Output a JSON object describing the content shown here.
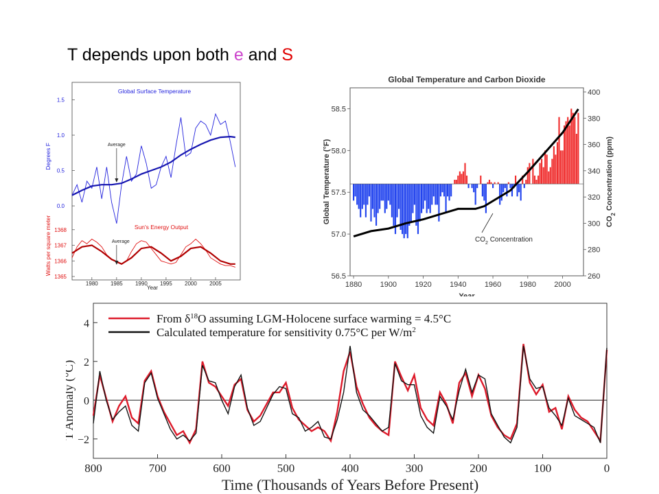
{
  "slide": {
    "title_parts": [
      {
        "text": "T depends upon both ",
        "color": "#000000"
      },
      {
        "text": "e",
        "color": "#cc44cc"
      },
      {
        "text": " and ",
        "color": "#000000"
      },
      {
        "text": "S",
        "color": "#e00000"
      }
    ]
  },
  "chart_data": [
    {
      "type": "line",
      "panel": "top-left-temperature",
      "title": "Global Surface Temperature",
      "ylabel": "Degrees F",
      "ylim": [
        -0.3,
        1.65
      ],
      "yticks": [
        0.0,
        0.5,
        1.0,
        1.5
      ],
      "ytick_labels": [
        "0.0",
        "0.5",
        "1.0",
        "1.5"
      ],
      "xlim": [
        1976,
        2010
      ],
      "annotation": "Average",
      "annotation_x": 1985,
      "color": "#2222dd",
      "series": [
        {
          "x": [
            1976,
            1977,
            1978,
            1979,
            1980,
            1981,
            1982,
            1983,
            1984,
            1985,
            1986,
            1987,
            1988,
            1989,
            1990,
            1991,
            1992,
            1993,
            1994,
            1995,
            1996,
            1997,
            1998,
            1999,
            2000,
            2001,
            2002,
            2003,
            2004,
            2005,
            2006,
            2007,
            2008,
            2009
          ],
          "values": [
            0.15,
            0.3,
            0.05,
            0.35,
            0.25,
            0.55,
            0.1,
            0.55,
            0.05,
            -0.25,
            0.3,
            0.7,
            0.35,
            0.45,
            0.85,
            0.6,
            0.25,
            0.3,
            0.55,
            0.7,
            0.4,
            0.85,
            1.25,
            0.7,
            0.75,
            1.1,
            1.2,
            1.15,
            1.0,
            1.3,
            1.15,
            1.2,
            0.9,
            0.55
          ]
        },
        {
          "x": [
            1976,
            1978,
            1980,
            1982,
            1984,
            1986,
            1988,
            1990,
            1992,
            1994,
            1996,
            1998,
            2000,
            2002,
            2004,
            2006,
            2008,
            2009
          ],
          "values": [
            0.15,
            0.22,
            0.28,
            0.3,
            0.3,
            0.32,
            0.38,
            0.45,
            0.5,
            0.55,
            0.62,
            0.72,
            0.8,
            0.87,
            0.93,
            0.97,
            0.98,
            0.97
          ]
        }
      ]
    },
    {
      "type": "line",
      "panel": "top-left-solar",
      "title": "Sun's Energy Output",
      "ylabel": "Watts per square meter",
      "ylim": [
        1365,
        1368.3
      ],
      "yticks": [
        1365,
        1366,
        1367,
        1368
      ],
      "ytick_labels": [
        "1365",
        "1366",
        "1367",
        "1368"
      ],
      "xlabel": "Year",
      "xlim": [
        1976,
        2010
      ],
      "xticks": [
        1980,
        1985,
        1990,
        1995,
        2000,
        2005
      ],
      "xtick_labels": [
        "1980",
        "1985",
        "1990",
        "1995",
        "2000",
        "2005"
      ],
      "annotation": "Average",
      "annotation_x": 1985,
      "color": "#e01010",
      "series": [
        {
          "x": [
            1976,
            1977,
            1978,
            1979,
            1980,
            1981,
            1982,
            1983,
            1984,
            1985,
            1986,
            1987,
            1988,
            1989,
            1990,
            1991,
            1992,
            1993,
            1994,
            1995,
            1996,
            1997,
            1998,
            1999,
            2000,
            2001,
            2002,
            2003,
            2004,
            2005,
            2006,
            2007,
            2008,
            2009
          ],
          "values": [
            1366.2,
            1366.9,
            1367.3,
            1367.1,
            1367.4,
            1367.2,
            1366.9,
            1366.4,
            1366.1,
            1365.9,
            1365.8,
            1366.0,
            1366.6,
            1367.1,
            1367.3,
            1367.2,
            1366.8,
            1366.4,
            1366.0,
            1365.9,
            1365.8,
            1365.9,
            1366.4,
            1366.9,
            1367.1,
            1367.4,
            1367.1,
            1366.7,
            1366.2,
            1366.0,
            1365.8,
            1365.7,
            1365.7,
            1365.6
          ]
        },
        {
          "x": [
            1976,
            1978,
            1980,
            1982,
            1984,
            1986,
            1988,
            1990,
            1992,
            1994,
            1996,
            1998,
            2000,
            2002,
            2004,
            2006,
            2008,
            2009
          ],
          "values": [
            1366.5,
            1366.9,
            1367.0,
            1366.6,
            1366.1,
            1365.8,
            1366.2,
            1366.8,
            1366.9,
            1366.5,
            1366.0,
            1366.3,
            1366.8,
            1366.9,
            1366.5,
            1366.0,
            1365.8,
            1365.8
          ]
        }
      ]
    },
    {
      "type": "bar",
      "panel": "top-right",
      "title": "Global Temperature and Carbon Dioxide",
      "ylabel": "Global Temperature (°F)",
      "y2label_parts": [
        "CO",
        "2",
        " Concentration (ppm)"
      ],
      "xlabel": "Year",
      "xlim": [
        1878,
        2012
      ],
      "xticks": [
        1880,
        1900,
        1920,
        1940,
        1960,
        1980,
        2000
      ],
      "xtick_labels": [
        "1880",
        "1900",
        "1920",
        "1940",
        "1960",
        "1980",
        "2000"
      ],
      "ylim": [
        56.5,
        58.75
      ],
      "yticks": [
        56.5,
        57.0,
        57.5,
        58.0,
        58.5
      ],
      "ytick_labels": [
        "56.5",
        "57.0",
        "57.5",
        "58.0",
        "58.5"
      ],
      "baseline": 57.6,
      "y2lim": [
        260,
        400
      ],
      "y2ticks": [
        260,
        280,
        300,
        320,
        340,
        360,
        380,
        400
      ],
      "y2tick_labels": [
        "260",
        "280",
        "300",
        "320",
        "340",
        "360",
        "380",
        "400"
      ],
      "positive_color": "#f03030",
      "negative_color": "#2244ee",
      "co2_label_parts": [
        "CO",
        "2",
        " Concentration"
      ],
      "temperature": {
        "x": [
          1880,
          1881,
          1882,
          1883,
          1884,
          1885,
          1886,
          1887,
          1888,
          1889,
          1890,
          1891,
          1892,
          1893,
          1894,
          1895,
          1896,
          1897,
          1898,
          1899,
          1900,
          1901,
          1902,
          1903,
          1904,
          1905,
          1906,
          1907,
          1908,
          1909,
          1910,
          1911,
          1912,
          1913,
          1914,
          1915,
          1916,
          1917,
          1918,
          1919,
          1920,
          1921,
          1922,
          1923,
          1924,
          1925,
          1926,
          1927,
          1928,
          1929,
          1930,
          1931,
          1932,
          1933,
          1934,
          1935,
          1936,
          1937,
          1938,
          1939,
          1940,
          1941,
          1942,
          1943,
          1944,
          1945,
          1946,
          1947,
          1948,
          1949,
          1950,
          1951,
          1952,
          1953,
          1954,
          1955,
          1956,
          1957,
          1958,
          1959,
          1960,
          1961,
          1962,
          1963,
          1964,
          1965,
          1966,
          1967,
          1968,
          1969,
          1970,
          1971,
          1972,
          1973,
          1974,
          1975,
          1976,
          1977,
          1978,
          1979,
          1980,
          1981,
          1982,
          1983,
          1984,
          1985,
          1986,
          1987,
          1988,
          1989,
          1990,
          1991,
          1992,
          1993,
          1994,
          1995,
          1996,
          1997,
          1998,
          1999,
          2000,
          2001,
          2002,
          2003,
          2004,
          2005,
          2006,
          2007,
          2008,
          2009
        ],
        "values": [
          57.4,
          57.45,
          57.35,
          57.3,
          57.2,
          57.3,
          57.35,
          57.2,
          57.35,
          57.45,
          57.15,
          57.3,
          57.2,
          57.1,
          57.25,
          57.3,
          57.4,
          57.4,
          57.25,
          57.3,
          57.4,
          57.35,
          57.2,
          57.1,
          57.0,
          57.2,
          57.3,
          57.05,
          57.0,
          56.95,
          57.0,
          56.95,
          57.1,
          57.15,
          57.25,
          57.35,
          57.1,
          57.0,
          57.15,
          57.25,
          57.3,
          57.4,
          57.25,
          57.3,
          57.25,
          57.35,
          57.45,
          57.35,
          57.35,
          57.15,
          57.45,
          57.5,
          57.45,
          57.25,
          57.45,
          57.4,
          57.45,
          57.6,
          57.65,
          57.65,
          57.7,
          57.75,
          57.72,
          57.75,
          57.85,
          57.7,
          57.55,
          57.6,
          57.55,
          57.5,
          57.35,
          57.55,
          57.6,
          57.7,
          57.45,
          57.4,
          57.25,
          57.62,
          57.65,
          57.62,
          57.55,
          57.62,
          57.6,
          57.62,
          57.35,
          57.4,
          57.5,
          57.55,
          57.45,
          57.62,
          57.55,
          57.45,
          57.55,
          57.7,
          57.45,
          57.5,
          57.4,
          57.7,
          57.55,
          57.65,
          57.8,
          57.85,
          57.6,
          57.9,
          57.7,
          57.65,
          57.7,
          57.85,
          57.9,
          57.8,
          58.0,
          57.95,
          57.75,
          57.8,
          57.9,
          58.05,
          57.95,
          58.1,
          58.4,
          58.0,
          58.0,
          58.3,
          58.35,
          58.4,
          58.3,
          58.5,
          58.45,
          58.4,
          58.2,
          58.45
        ]
      },
      "co2": {
        "x": [
          1880,
          1890,
          1900,
          1910,
          1920,
          1930,
          1940,
          1950,
          1955,
          1960,
          1970,
          1980,
          1990,
          2000,
          2009
        ],
        "values": [
          290,
          294,
          296,
          300,
          303,
          307,
          311,
          311,
          313,
          317,
          325,
          339,
          354,
          369,
          387
        ]
      }
    },
    {
      "type": "line",
      "panel": "bottom",
      "xlabel": "Time (Thousands of Years Before Present)",
      "ylabel": "T Anomaly (°C)",
      "xlim": [
        800,
        0
      ],
      "xticks": [
        800,
        700,
        600,
        500,
        400,
        300,
        200,
        100,
        0
      ],
      "xtick_labels": [
        "800",
        "700",
        "600",
        "500",
        "400",
        "300",
        "200",
        "100",
        "0"
      ],
      "ylim": [
        -3,
        5
      ],
      "yticks": [
        -2,
        0,
        2,
        4
      ],
      "ytick_labels": [
        "−2",
        "0",
        "2",
        "4"
      ],
      "legend_location": "top-left",
      "series": [
        {
          "name_parts": [
            "From δ",
            "18",
            "O assuming LGM-Holocene surface warming = 4.5°C"
          ],
          "color": "#dd1a2a",
          "x": [
            800,
            790,
            780,
            770,
            760,
            750,
            740,
            730,
            720,
            710,
            700,
            690,
            680,
            670,
            660,
            650,
            640,
            630,
            620,
            610,
            600,
            590,
            580,
            570,
            560,
            550,
            540,
            530,
            520,
            510,
            500,
            490,
            480,
            470,
            460,
            450,
            440,
            430,
            420,
            410,
            400,
            390,
            380,
            370,
            360,
            350,
            340,
            330,
            320,
            310,
            300,
            290,
            280,
            270,
            260,
            250,
            240,
            230,
            220,
            210,
            200,
            190,
            180,
            170,
            160,
            150,
            140,
            130,
            120,
            110,
            100,
            90,
            80,
            70,
            60,
            50,
            40,
            30,
            20,
            10,
            0
          ],
          "values": [
            -0.8,
            1.3,
            0.1,
            -1.1,
            -0.3,
            0.2,
            -0.9,
            -1.2,
            1.0,
            1.5,
            0.2,
            -0.6,
            -1.2,
            -1.8,
            -1.6,
            -2.2,
            -1.5,
            2.0,
            0.9,
            0.7,
            0.2,
            -0.3,
            0.8,
            1.1,
            -0.5,
            -1.1,
            -0.8,
            -0.2,
            0.4,
            0.4,
            0.9,
            -0.4,
            -1.0,
            -1.3,
            -1.6,
            -1.4,
            -1.6,
            -2.1,
            -0.6,
            1.5,
            2.5,
            0.7,
            -0.2,
            -0.9,
            -1.3,
            -1.6,
            -1.8,
            2.0,
            1.2,
            0.5,
            1.3,
            -0.4,
            -1.0,
            -1.3,
            0.4,
            -0.2,
            -1.2,
            0.9,
            1.4,
            0.2,
            1.3,
            0.6,
            -0.8,
            -1.4,
            -1.8,
            -2.0,
            -1.2,
            2.9,
            0.9,
            0.3,
            0.8,
            -0.6,
            -0.4,
            -1.5,
            0.2,
            -0.5,
            -0.9,
            -1.1,
            -1.6,
            -2.1,
            2.6
          ]
        },
        {
          "name_parts": [
            "Calculated temperature for sensitivity 0.75°C per W/m",
            "2",
            ""
          ],
          "color": "#111111",
          "x": [
            800,
            790,
            780,
            770,
            760,
            750,
            740,
            730,
            720,
            710,
            700,
            690,
            680,
            670,
            660,
            650,
            640,
            630,
            620,
            610,
            600,
            590,
            580,
            570,
            560,
            550,
            540,
            530,
            520,
            510,
            500,
            490,
            480,
            470,
            460,
            450,
            440,
            430,
            420,
            410,
            400,
            390,
            380,
            370,
            360,
            350,
            340,
            330,
            320,
            310,
            300,
            290,
            280,
            270,
            260,
            250,
            240,
            230,
            220,
            210,
            200,
            190,
            180,
            170,
            160,
            150,
            140,
            130,
            120,
            110,
            100,
            90,
            80,
            70,
            60,
            50,
            40,
            30,
            20,
            10,
            0
          ],
          "values": [
            -1.2,
            1.5,
            0.0,
            -1.0,
            -0.6,
            -0.3,
            -1.3,
            -1.6,
            0.9,
            1.4,
            0.1,
            -0.7,
            -1.5,
            -2.0,
            -1.8,
            -2.1,
            -1.7,
            1.8,
            1.0,
            0.9,
            0.0,
            -0.7,
            0.7,
            1.3,
            -0.4,
            -1.3,
            -1.1,
            -0.4,
            0.3,
            0.7,
            0.6,
            -0.7,
            -0.9,
            -1.6,
            -1.4,
            -1.1,
            -1.9,
            -2.0,
            -1.0,
            0.4,
            2.8,
            0.4,
            -0.5,
            -0.8,
            -1.2,
            -1.6,
            -1.4,
            1.9,
            1.0,
            0.8,
            0.8,
            -0.8,
            -1.4,
            -1.7,
            0.2,
            -0.3,
            -1.0,
            0.5,
            1.6,
            0.4,
            1.3,
            1.1,
            -0.7,
            -1.3,
            -1.9,
            -2.2,
            -1.4,
            2.8,
            1.1,
            0.6,
            0.7,
            -0.4,
            -0.8,
            -1.3,
            0.1,
            -0.8,
            -1.0,
            -1.2,
            -1.4,
            -2.2,
            2.7
          ]
        }
      ]
    }
  ]
}
